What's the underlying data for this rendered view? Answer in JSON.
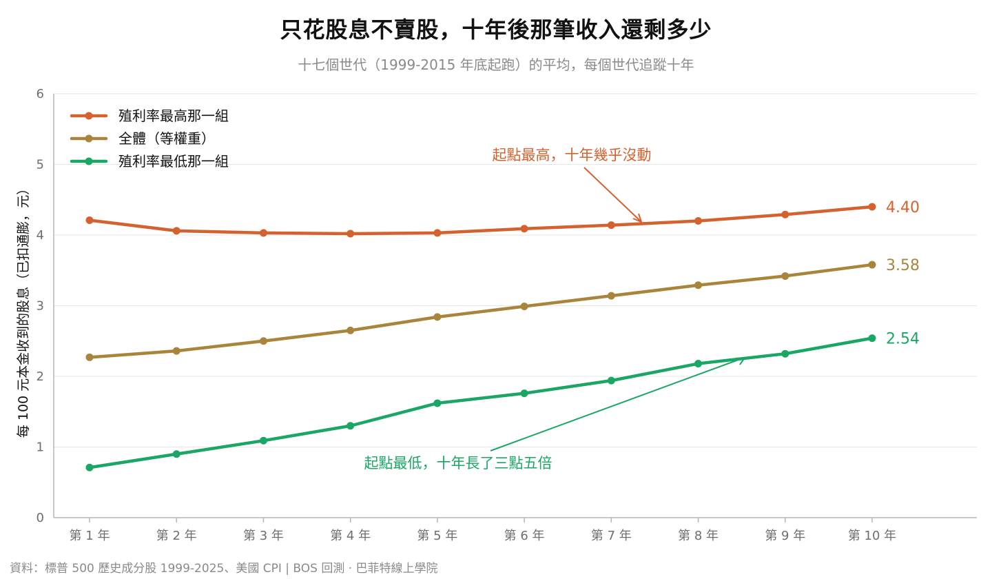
{
  "title": "只花股息不賣股，十年後那筆收入還剩多少",
  "subtitle": "十七個世代（1999-2015 年底起跑）的平均，每個世代追蹤十年",
  "source": "資料：標普 500 歷史成分股 1999-2025、美國 CPI | BOS 回測 ·  巴菲特線上學院",
  "chart_data": {
    "type": "line",
    "ylabel": "每 100 元本金收到的股息（已扣通膨，元）",
    "ylim": [
      0,
      6
    ],
    "yticks": [
      "0",
      "1",
      "2",
      "3",
      "4",
      "5",
      "6"
    ],
    "categories": [
      "第 1 年",
      "第 2 年",
      "第 3 年",
      "第 4 年",
      "第 5 年",
      "第 6 年",
      "第 7 年",
      "第 8 年",
      "第 9 年",
      "第 10 年"
    ],
    "grid": true,
    "legend_position": "top-left",
    "series": [
      {
        "name": "殖利率最高那一組",
        "color": "#d4622f",
        "values": [
          4.21,
          4.06,
          4.03,
          4.02,
          4.03,
          4.09,
          4.14,
          4.2,
          4.29,
          4.4
        ],
        "end_label": "4.40"
      },
      {
        "name": "全體（等權重）",
        "color": "#a9853c",
        "values": [
          2.27,
          2.36,
          2.5,
          2.65,
          2.84,
          2.99,
          3.14,
          3.29,
          3.42,
          3.58
        ],
        "end_label": "3.58"
      },
      {
        "name": "殖利率最低那一組",
        "color": "#1aa664",
        "values": [
          0.71,
          0.9,
          1.09,
          1.3,
          1.62,
          1.76,
          1.94,
          2.18,
          2.32,
          2.54
        ],
        "end_label": "2.54"
      }
    ],
    "annotations": [
      {
        "text": "起點最高，十年幾乎沒動",
        "color": "#d4622f"
      },
      {
        "text": "起點最低，十年長了三點五倍",
        "color": "#1aa664"
      }
    ]
  }
}
